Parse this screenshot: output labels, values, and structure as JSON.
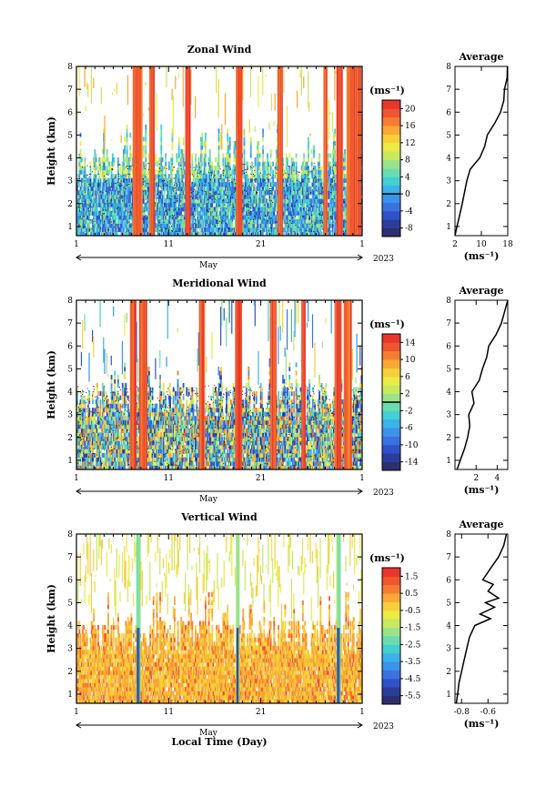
{
  "chart_data": [
    {
      "type": "heatmap",
      "title": "Zonal Wind",
      "ylabel": "Height (km)",
      "ylim": [
        0.6,
        8
      ],
      "yticks": [
        "1",
        "2",
        "3",
        "4",
        "5",
        "6",
        "7",
        "8"
      ],
      "xlim": [
        1,
        32
      ],
      "xticks": [
        "1",
        "11",
        "21",
        "1"
      ],
      "month_label": "May",
      "year_label": "2023",
      "colorbar": {
        "unit": "(ms⁻¹)",
        "range": [
          -10,
          22
        ],
        "ticks": [
          "20",
          "16",
          "12",
          "8",
          "4",
          "0",
          "-4",
          "-8"
        ],
        "colors": [
          "#2b2f6e",
          "#2a3d9c",
          "#2f52c8",
          "#3a73e0",
          "#3b93ea",
          "#3cb2e8",
          "#44cfd4",
          "#6bdcb0",
          "#9be388",
          "#c8e860",
          "#ecea45",
          "#f8cf3a",
          "#f9a737",
          "#f47d33",
          "#ee5530",
          "#e8362c"
        ]
      },
      "features": {
        "storms": [
          [
            7.1,
            8.1
          ],
          [
            8.9,
            9.4
          ],
          [
            12.8,
            13.3
          ],
          [
            18.3,
            18.9
          ],
          [
            22.8,
            23.3
          ],
          [
            27.8,
            28.2
          ],
          [
            29.2,
            29.8
          ],
          [
            30.3,
            31.8
          ]
        ],
        "low_level_top_km": 4.3,
        "wave_column_km": [
          0.8,
          3.8
        ]
      },
      "profile": {
        "title": "Average",
        "xlabel": "(ms⁻¹)",
        "xticks": [
          "2",
          "10",
          "18"
        ],
        "xlim": [
          2,
          18
        ],
        "heights": [
          0.6,
          1.0,
          1.5,
          2.0,
          2.5,
          3.0,
          3.5,
          3.8,
          4.0,
          4.5,
          5.0,
          5.5,
          6.0,
          6.5,
          7.0,
          7.5,
          8.0
        ],
        "values": [
          2.0,
          2.6,
          3.4,
          4.2,
          4.9,
          5.6,
          6.6,
          8.3,
          9.5,
          11.0,
          11.8,
          14.0,
          15.8,
          16.8,
          17.0,
          17.8,
          17.9
        ]
      }
    },
    {
      "type": "heatmap",
      "title": "Meridional Wind",
      "ylabel": "Height (km)",
      "ylim": [
        0.6,
        8
      ],
      "yticks": [
        "1",
        "2",
        "3",
        "4",
        "5",
        "6",
        "7",
        "8"
      ],
      "xlim": [
        1,
        32
      ],
      "xticks": [
        "1",
        "11",
        "21",
        "1"
      ],
      "month_label": "May",
      "year_label": "2023",
      "colorbar": {
        "unit": "(ms⁻¹)",
        "range": [
          -16,
          16
        ],
        "ticks": [
          "14",
          "10",
          "6",
          "2",
          "-2",
          "-6",
          "-10",
          "-14"
        ],
        "colors": [
          "#2b2f6e",
          "#2a3d9c",
          "#2f52c8",
          "#3a73e0",
          "#3b93ea",
          "#3cb2e8",
          "#44cfd4",
          "#6bdcb0",
          "#9be388",
          "#c8e860",
          "#ecea45",
          "#f8cf3a",
          "#f9a737",
          "#f47d33",
          "#ee5530",
          "#e8362c"
        ]
      },
      "features": {
        "storms": [
          [
            6.8,
            7.4
          ],
          [
            7.8,
            8.6
          ],
          [
            14.3,
            14.9
          ],
          [
            18.2,
            18.9
          ],
          [
            22.0,
            22.6
          ],
          [
            25.4,
            25.8
          ],
          [
            29.0,
            29.7
          ],
          [
            30.0,
            30.8
          ]
        ],
        "low_level_top_km": 4.3,
        "wave_column_km": [
          0.8,
          4.3
        ]
      },
      "profile": {
        "title": "Average",
        "xlabel": "(ms⁻¹)",
        "xticks": [
          "2",
          "4"
        ],
        "xlim": [
          0,
          5
        ],
        "heights": [
          0.6,
          1.0,
          1.5,
          2.0,
          2.5,
          3.0,
          3.5,
          4.0,
          4.5,
          5.0,
          5.5,
          6.0,
          6.5,
          7.0,
          7.5,
          8.0
        ],
        "values": [
          0.2,
          0.5,
          0.9,
          1.2,
          1.4,
          1.3,
          1.8,
          1.6,
          2.3,
          2.6,
          3.0,
          3.2,
          3.9,
          4.4,
          4.7,
          5.0
        ]
      }
    },
    {
      "type": "heatmap",
      "title": "Vertical Wind",
      "ylabel": "Height (km)",
      "xlabel": "Local Time (Day)",
      "ylim": [
        0.6,
        8
      ],
      "yticks": [
        "1",
        "2",
        "3",
        "4",
        "5",
        "6",
        "7",
        "8"
      ],
      "xlim": [
        1,
        32
      ],
      "xticks": [
        "1",
        "11",
        "21",
        "1"
      ],
      "month_label": "May",
      "year_label": "2023",
      "colorbar": {
        "unit": "(ms⁻¹)",
        "range": [
          -6,
          2
        ],
        "ticks": [
          "1.5",
          "0.5",
          "-0.5",
          "-1.5",
          "-2.5",
          "-3.5",
          "-4.5",
          "-5.5"
        ],
        "colors": [
          "#2b2f6e",
          "#2a3d9c",
          "#2f52c8",
          "#3a73e0",
          "#3b93ea",
          "#3cb2e8",
          "#44cfd4",
          "#6bdcb0",
          "#9be388",
          "#c8e860",
          "#ecea45",
          "#f8cf3a",
          "#f9a737",
          "#f47d33",
          "#ee5530",
          "#e8362c"
        ]
      },
      "features": {
        "storms": [
          [
            7.5,
            7.9
          ],
          [
            18.3,
            18.6
          ],
          [
            29.2,
            29.6
          ]
        ],
        "low_level_top_km": 4.2,
        "wave_column_km": [
          0.8,
          4.0
        ]
      },
      "profile": {
        "title": "Average",
        "xlabel": "(ms⁻¹)",
        "xticks": [
          "-0.8",
          "-0.6"
        ],
        "xlim": [
          -0.85,
          -0.45
        ],
        "heights": [
          0.6,
          1.0,
          1.5,
          2.0,
          2.5,
          3.0,
          3.5,
          4.0,
          4.3,
          4.5,
          4.8,
          5.0,
          5.2,
          5.5,
          5.8,
          6.0,
          6.5,
          7.0,
          7.5,
          8.0
        ],
        "values": [
          -0.84,
          -0.83,
          -0.82,
          -0.8,
          -0.78,
          -0.76,
          -0.74,
          -0.7,
          -0.58,
          -0.66,
          -0.55,
          -0.62,
          -0.52,
          -0.6,
          -0.56,
          -0.64,
          -0.58,
          -0.52,
          -0.48,
          -0.46
        ]
      }
    }
  ]
}
